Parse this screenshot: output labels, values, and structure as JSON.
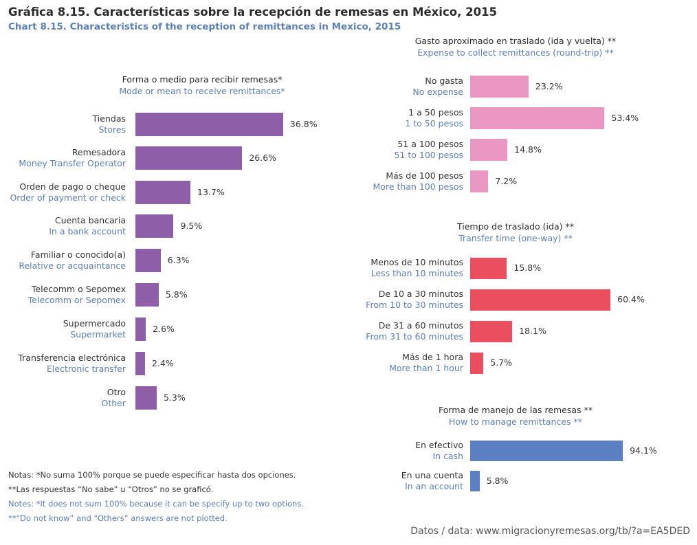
{
  "title_es": "Gráfica 8.15. Características sobre la recepción de remesas en México, 2015",
  "title_en": "Chart 8.15. Characteristics of the reception of remittances in Mexico, 2015",
  "colors": {
    "purple": "#8e5ea8",
    "pink": "#ea98c3",
    "red": "#ea4e5f",
    "blue": "#5b7fc2"
  },
  "chart_data": [
    {
      "type": "bar",
      "orientation": "horizontal",
      "title_es": "Forma o medio para recibir remesas*",
      "title_en": "Mode or mean to receive remittances*",
      "categories_es": [
        "Tiendas",
        "Remesadora",
        "Orden de pago o cheque",
        "Cuenta bancaria",
        "Familiar o conocido(a)",
        "Telecomm o Sepomex",
        "Supermercado",
        "Transferencia electrónica",
        "Otro"
      ],
      "categories_en": [
        "Stores",
        "Money Transfer Operator",
        "Order of payment or check",
        "In a bank account",
        "Relative or acquaintance",
        "Telecomm or Sepomex",
        "Supermarket",
        "Electronic transfer",
        "Other"
      ],
      "values": [
        36.8,
        26.6,
        13.7,
        9.5,
        6.3,
        5.8,
        2.6,
        2.4,
        5.3
      ],
      "labels": [
        "36.8%",
        "26.6%",
        "13.7%",
        "9.5%",
        "6.3%",
        "5.8%",
        "2.6%",
        "2.4%",
        "5.3%"
      ],
      "unit": "%",
      "color": "purple"
    },
    {
      "type": "bar",
      "orientation": "horizontal",
      "title_es": "Gasto aproximado en traslado (ida y vuelta) **",
      "title_en": "Expense to collect remittances (round-trip) **",
      "categories_es": [
        "No gasta",
        "1 a 50 pesos",
        "51 a 100 pesos",
        "Más de 100 pesos"
      ],
      "categories_en": [
        "No expense",
        "1 to 50 pesos",
        "51 to 100 pesos",
        "More than 100 pesos"
      ],
      "values": [
        23.2,
        53.4,
        14.8,
        7.2
      ],
      "labels": [
        "23.2%",
        "53.4%",
        "14.8%",
        "7.2%"
      ],
      "unit": "%",
      "color": "pink"
    },
    {
      "type": "bar",
      "orientation": "horizontal",
      "title_es": "Tiempo de traslado (ida) **",
      "title_en": "Transfer time (one-way) **",
      "categories_es": [
        "Menos de 10 minutos",
        "De 10 a 30 minutos",
        "De 31 a 60 minutos",
        "Más de 1 hora"
      ],
      "categories_en": [
        "Less than 10 minutes",
        "From 10 to 30 minutes",
        "From 31 to 60 minutes",
        "More than 1 hour"
      ],
      "values": [
        15.8,
        60.4,
        18.1,
        5.7
      ],
      "labels": [
        "15.8%",
        "60.4%",
        "18.1%",
        "5.7%"
      ],
      "unit": "%",
      "color": "red"
    },
    {
      "type": "bar",
      "orientation": "horizontal",
      "title_es": "Forma de manejo de las remesas **",
      "title_en": "How to manage remittances **",
      "categories_es": [
        "En efectivo",
        "En una cuenta"
      ],
      "categories_en": [
        "In cash",
        "In an account"
      ],
      "values": [
        94.1,
        5.8
      ],
      "labels": [
        "94.1%",
        "5.8%"
      ],
      "unit": "%",
      "color": "blue"
    }
  ],
  "notes_es": [
    "Notas: *No suma 100% porque se puede especificar hasta dos opciones.",
    "**Las respuestas “No sabe” u “Otros” no se graficó."
  ],
  "notes_en": [
    "Notes: *It does not sum 100% because it can be specify up to two options.",
    "**“Do not know” and “Others” answers are not plotted."
  ],
  "source": "Datos / data: www.migracionyremesas.org/tb/?a=EA5DED"
}
